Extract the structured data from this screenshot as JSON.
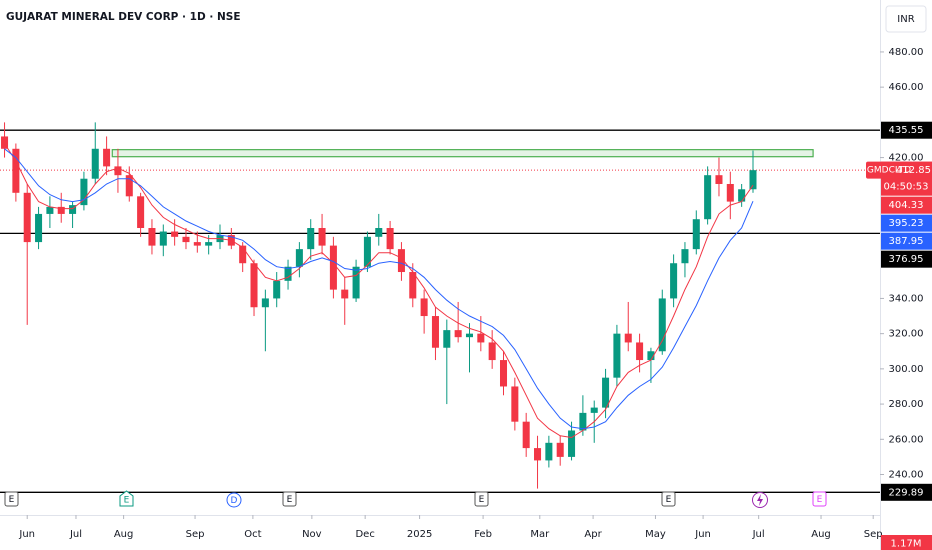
{
  "chart_data": {
    "type": "candlestick",
    "title": "GUJARAT MINERAL DEV CORP · 1D · NSE",
    "currency": "INR",
    "symbol": "GMDCLTD",
    "countdown": "04:50:53",
    "candles": {
      "open": [
        432,
        425,
        400,
        372,
        388,
        392,
        388,
        393,
        408,
        425,
        415,
        410,
        398,
        380,
        370,
        378,
        375,
        372,
        370,
        372,
        376,
        370,
        360,
        335,
        340,
        350,
        358,
        368,
        380,
        370,
        345,
        340,
        358,
        375,
        380,
        368,
        355,
        340,
        330,
        312,
        322,
        318,
        320,
        315,
        305,
        290,
        270,
        255,
        248,
        258,
        250,
        265,
        275,
        278,
        295,
        320,
        315,
        305,
        310,
        340,
        360,
        368,
        385,
        410,
        405,
        395,
        402
      ],
      "high": [
        440,
        428,
        405,
        392,
        398,
        400,
        395,
        412,
        440,
        432,
        425,
        415,
        400,
        385,
        382,
        385,
        380,
        378,
        376,
        382,
        380,
        372,
        362,
        345,
        355,
        362,
        372,
        385,
        388,
        375,
        352,
        362,
        378,
        388,
        384,
        372,
        360,
        345,
        335,
        328,
        338,
        326,
        330,
        322,
        310,
        295,
        275,
        262,
        262,
        262,
        270,
        285,
        282,
        300,
        325,
        338,
        320,
        312,
        345,
        365,
        372,
        390,
        415,
        420,
        412,
        405,
        424
      ],
      "low": [
        420,
        395,
        325,
        368,
        380,
        383,
        380,
        390,
        405,
        410,
        400,
        395,
        375,
        365,
        364,
        370,
        368,
        366,
        365,
        368,
        368,
        355,
        330,
        310,
        335,
        345,
        352,
        362,
        365,
        340,
        325,
        338,
        355,
        370,
        365,
        350,
        335,
        320,
        305,
        280,
        315,
        298,
        310,
        300,
        285,
        265,
        250,
        232,
        244,
        245,
        248,
        262,
        258,
        272,
        290,
        310,
        298,
        292,
        308,
        335,
        352,
        365,
        382,
        398,
        385,
        392,
        400
      ],
      "close": [
        425,
        400,
        372,
        388,
        392,
        388,
        393,
        408,
        425,
        415,
        410,
        398,
        380,
        370,
        378,
        375,
        372,
        370,
        372,
        376,
        370,
        360,
        335,
        340,
        350,
        358,
        368,
        380,
        370,
        345,
        340,
        358,
        375,
        380,
        368,
        355,
        340,
        330,
        312,
        322,
        318,
        320,
        315,
        305,
        290,
        270,
        255,
        248,
        258,
        250,
        265,
        275,
        278,
        295,
        320,
        315,
        305,
        310,
        340,
        360,
        368,
        385,
        410,
        405,
        395,
        402,
        412.85
      ]
    },
    "up_color": "#089981",
    "down_color": "#f23645",
    "series": [
      {
        "color": "#f23645",
        "values": [
          428,
          418,
          405,
          395,
          392,
          391,
          391,
          396,
          405,
          412,
          414,
          411,
          403,
          393,
          386,
          382,
          379,
          376,
          374,
          374,
          373,
          369,
          360,
          352,
          350,
          352,
          357,
          364,
          366,
          360,
          352,
          353,
          359,
          366,
          366,
          363,
          355,
          346,
          335,
          330,
          326,
          323,
          321,
          317,
          310,
          298,
          285,
          272,
          266,
          262,
          261,
          265,
          270,
          277,
          290,
          298,
          302,
          305,
          316,
          330,
          345,
          358,
          375,
          388,
          393,
          395,
          404.33
        ]
      },
      {
        "color": "#2962ff",
        "values": [
          425,
          420,
          412,
          404,
          399,
          396,
          395,
          396,
          400,
          405,
          408,
          408,
          404,
          398,
          392,
          388,
          384,
          381,
          378,
          376,
          375,
          373,
          368,
          362,
          358,
          357,
          358,
          361,
          363,
          361,
          357,
          356,
          357,
          360,
          361,
          360,
          357,
          352,
          345,
          339,
          334,
          330,
          327,
          324,
          319,
          311,
          300,
          289,
          280,
          272,
          267,
          266,
          267,
          270,
          278,
          285,
          290,
          294,
          301,
          312,
          324,
          336,
          350,
          363,
          373,
          380,
          395.23
        ]
      }
    ],
    "levels": [
      435.55,
      376.95,
      229.89
    ],
    "extra_badge": {
      "value": 387.95,
      "color": "#2962ff"
    },
    "zone": {
      "low": 420.5,
      "high": 424.5,
      "from": 9.5,
      "to": 71.3,
      "color": "#4caf50"
    },
    "xlim": [
      -0.4,
      77.2
    ],
    "xticks": [
      {
        "value": 2,
        "label": "Jun"
      },
      {
        "value": 6.3,
        "label": "Jul"
      },
      {
        "value": 10.5,
        "label": "Aug"
      },
      {
        "value": 16.8,
        "label": "Sep"
      },
      {
        "value": 21.9,
        "label": "Oct"
      },
      {
        "value": 27.1,
        "label": "Nov"
      },
      {
        "value": 31.8,
        "label": "Dec"
      },
      {
        "value": 36.6,
        "label": "2025"
      },
      {
        "value": 42.2,
        "label": "Feb"
      },
      {
        "value": 47.2,
        "label": "Mar"
      },
      {
        "value": 51.9,
        "label": "Apr"
      },
      {
        "value": 57.4,
        "label": "May"
      },
      {
        "value": 61.6,
        "label": "Jun"
      },
      {
        "value": 66.5,
        "label": "Jul"
      },
      {
        "value": 72,
        "label": "Aug"
      },
      {
        "value": 76.6,
        "label": "Sep"
      }
    ],
    "ylim": [
      217,
      509.5
    ],
    "yticks": [
      {
        "value": 480,
        "label": "480.00"
      },
      {
        "value": 460,
        "label": "460.00"
      },
      {
        "value": 420,
        "label": "420.00"
      },
      {
        "value": 340,
        "label": "340.00"
      },
      {
        "value": 320,
        "label": "320.00"
      },
      {
        "value": 300,
        "label": "300.00"
      },
      {
        "value": 280,
        "label": "280.00"
      },
      {
        "value": 260,
        "label": "260.00"
      },
      {
        "value": 240,
        "label": "240.00"
      }
    ],
    "events": [
      "E",
      "E",
      "D",
      "E",
      "E",
      "E",
      "E"
    ],
    "volume_label": "1.17M"
  }
}
